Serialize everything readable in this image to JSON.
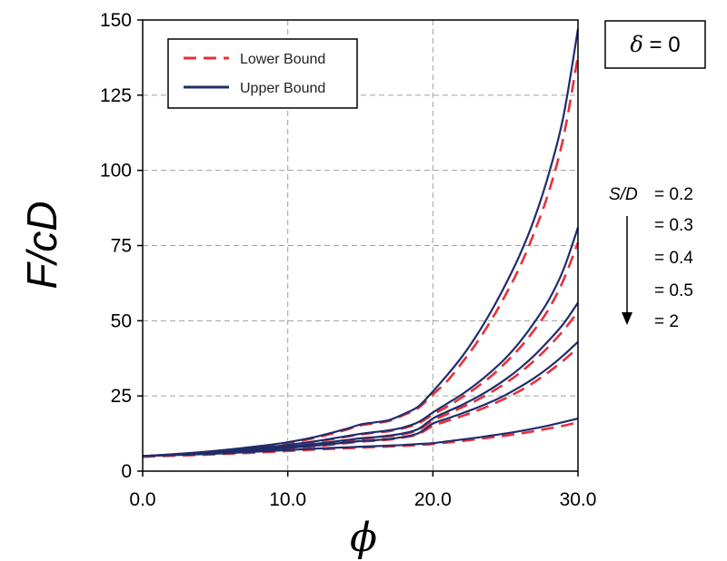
{
  "annotation_box": {
    "symbol": "δ",
    "text": " = 0"
  },
  "sd_annotation": {
    "label": "S/D",
    "values": [
      "= 0.2",
      "= 0.3",
      "= 0.4",
      "= 0.5",
      "= 2"
    ]
  },
  "colors": {
    "lower": "#e8303a",
    "upper": "#1f2d6b",
    "grid": "#a0a0a0"
  },
  "chart_data": {
    "type": "line",
    "title": "",
    "xlabel": "ϕ",
    "ylabel": "F/cD",
    "xlim": [
      0,
      30
    ],
    "ylim": [
      0,
      150
    ],
    "xticks": [
      0,
      10,
      20,
      30
    ],
    "xtick_labels": [
      "0.0",
      "10.0",
      "20.0",
      "30.0"
    ],
    "yticks": [
      0,
      25,
      50,
      75,
      100,
      125,
      150
    ],
    "ytick_labels": [
      "0",
      "25",
      "50",
      "75",
      "100",
      "125",
      "150"
    ],
    "grid": true,
    "legend": {
      "position": "top-left",
      "entries": [
        {
          "label": "Lower Bound",
          "style": "dashed",
          "color": "#e8303a"
        },
        {
          "label": "Upper Bound",
          "style": "solid",
          "color": "#1f2d6b"
        }
      ]
    },
    "x": [
      0,
      2,
      4,
      6,
      8,
      10,
      12,
      14,
      15,
      16,
      17,
      18,
      19,
      20,
      21,
      22,
      23,
      24,
      25,
      26,
      27,
      28,
      29,
      30
    ],
    "series": [
      {
        "name": "Upper Bound",
        "s_over_d": "0.2",
        "values": [
          5,
          5.6,
          6.3,
          7.2,
          8.3,
          9.6,
          11.5,
          14,
          15.5,
          16.2,
          17,
          19,
          21.5,
          26.5,
          32,
          38,
          45,
          53,
          62,
          72,
          84,
          99,
          118,
          147
        ]
      },
      {
        "name": "Lower Bound",
        "s_over_d": "0.2",
        "values": [
          4.8,
          5.4,
          6.1,
          7,
          8.1,
          9.3,
          11.2,
          13.7,
          15.2,
          15.9,
          16.7,
          18.7,
          21,
          25.5,
          30,
          36,
          42.5,
          50,
          58.5,
          68,
          79.5,
          93,
          111,
          138
        ]
      },
      {
        "name": "Upper Bound",
        "s_over_d": "0.3",
        "values": [
          5,
          5.5,
          6.1,
          6.8,
          7.7,
          8.7,
          10,
          11.6,
          12.4,
          13,
          13.6,
          14.6,
          16.3,
          19.5,
          22.5,
          25.5,
          29,
          33,
          37.5,
          43,
          49.5,
          57,
          67,
          81
        ]
      },
      {
        "name": "Lower Bound",
        "s_over_d": "0.3",
        "values": [
          4.8,
          5.3,
          5.9,
          6.6,
          7.5,
          8.5,
          9.8,
          11.4,
          12.2,
          12.8,
          13.3,
          14.3,
          15.9,
          18.8,
          21.5,
          24.5,
          27.8,
          31.5,
          36,
          41,
          47,
          54,
          63.5,
          76
        ]
      },
      {
        "name": "Upper Bound",
        "s_over_d": "0.4",
        "values": [
          5,
          5.5,
          6,
          6.6,
          7.3,
          8.1,
          9.1,
          10.3,
          10.9,
          11.3,
          11.8,
          12.6,
          14,
          17.5,
          19.8,
          22,
          24.5,
          27.3,
          30.5,
          34.2,
          38.5,
          43.5,
          49,
          56
        ]
      },
      {
        "name": "Lower Bound",
        "s_over_d": "0.4",
        "values": [
          4.8,
          5.3,
          5.8,
          6.4,
          7.1,
          7.9,
          8.9,
          10.1,
          10.7,
          11.1,
          11.6,
          12.3,
          13.7,
          16.8,
          19,
          21.2,
          23.5,
          26.2,
          29.2,
          32.7,
          36.8,
          41.5,
          46.8,
          53
        ]
      },
      {
        "name": "Upper Bound",
        "s_over_d": "0.5",
        "values": [
          5,
          5.4,
          5.9,
          6.4,
          7,
          7.7,
          8.5,
          9.5,
          10,
          10.3,
          10.7,
          11.4,
          12.6,
          15.8,
          17.5,
          19.2,
          21,
          23,
          25.3,
          28,
          31,
          34.5,
          38.5,
          43
        ]
      },
      {
        "name": "Lower Bound",
        "s_over_d": "0.5",
        "values": [
          4.8,
          5.2,
          5.7,
          6.2,
          6.8,
          7.5,
          8.3,
          9.3,
          9.8,
          10.1,
          10.5,
          11.2,
          12.3,
          15,
          16.7,
          18.3,
          20,
          22,
          24.2,
          26.7,
          29.6,
          33,
          36.8,
          41
        ]
      },
      {
        "name": "Upper Bound",
        "s_over_d": "2",
        "values": [
          5,
          5.3,
          5.6,
          6,
          6.5,
          7,
          7.5,
          7.9,
          8.1,
          8.3,
          8.5,
          8.7,
          9,
          9.3,
          9.9,
          10.5,
          11.1,
          11.8,
          12.5,
          13.3,
          14.2,
          15.2,
          16.3,
          17.5
        ]
      },
      {
        "name": "Lower Bound",
        "s_over_d": "2",
        "values": [
          4.8,
          5.1,
          5.4,
          5.8,
          6.2,
          6.7,
          7.2,
          7.6,
          7.8,
          8,
          8.2,
          8.4,
          8.7,
          9,
          9.5,
          10,
          10.6,
          11.2,
          11.8,
          12.5,
          13.3,
          14.2,
          15.1,
          16.2
        ]
      }
    ]
  }
}
